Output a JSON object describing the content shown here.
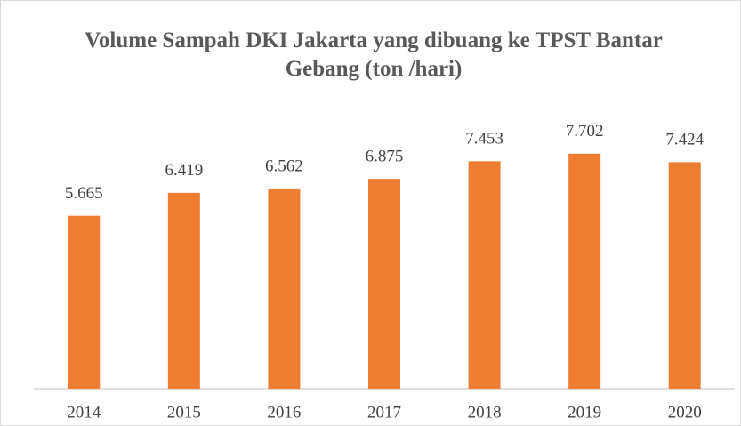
{
  "chart_data": {
    "type": "bar",
    "title": "Volume Sampah DKI Jakarta yang dibuang ke TPST Bantar Gebang (ton /hari)",
    "categories": [
      "2014",
      "2015",
      "2016",
      "2017",
      "2018",
      "2019",
      "2020"
    ],
    "values": [
      5665,
      6419,
      6562,
      6875,
      7453,
      7702,
      7424
    ],
    "value_labels": [
      "5.665",
      "6.419",
      "6.562",
      "6.875",
      "7.453",
      "7.702",
      "7.424"
    ],
    "color": "#ed7d31",
    "ylim": [
      0,
      10000
    ]
  }
}
